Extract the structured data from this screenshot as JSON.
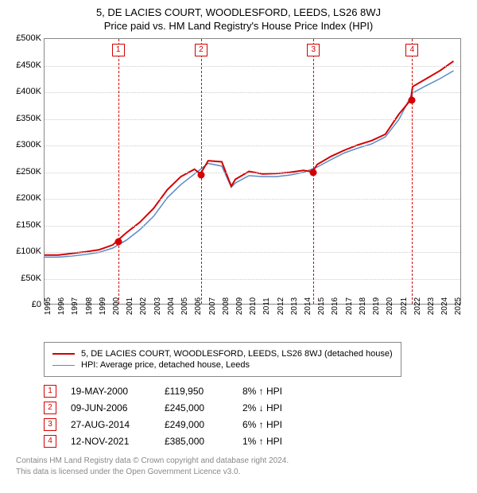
{
  "title": "5, DE LACIES COURT, WOODLESFORD, LEEDS, LS26 8WJ",
  "subtitle": "Price paid vs. HM Land Registry's House Price Index (HPI)",
  "chart": {
    "type": "line",
    "background_color": "#ffffff",
    "grid_color": "#cccccc",
    "border_color": "#888888",
    "y_axis": {
      "min": 0,
      "max": 500000,
      "step": 50000,
      "labels": [
        "£0",
        "£50K",
        "£100K",
        "£150K",
        "£200K",
        "£250K",
        "£300K",
        "£350K",
        "£400K",
        "£450K",
        "£500K"
      ],
      "fontsize": 11
    },
    "x_axis": {
      "min": 1995,
      "max": 2025.5,
      "ticks": [
        1995,
        1996,
        1997,
        1998,
        1999,
        2000,
        2001,
        2002,
        2003,
        2004,
        2005,
        2006,
        2007,
        2008,
        2009,
        2010,
        2011,
        2012,
        2013,
        2014,
        2015,
        2016,
        2017,
        2018,
        2019,
        2020,
        2021,
        2022,
        2023,
        2024,
        2025
      ],
      "fontsize": 10
    },
    "series": [
      {
        "name": "property",
        "label": "5, DE LACIES COURT, WOODLESFORD, LEEDS, LS26 8WJ (detached house)",
        "color": "#d40000",
        "line_width": 2,
        "points": [
          [
            1995,
            92000
          ],
          [
            1996,
            92000
          ],
          [
            1997,
            95000
          ],
          [
            1998,
            98000
          ],
          [
            1999,
            102000
          ],
          [
            2000,
            111000
          ],
          [
            2000.38,
            119950
          ],
          [
            2001,
            134000
          ],
          [
            2002,
            154000
          ],
          [
            2003,
            180000
          ],
          [
            2004,
            215000
          ],
          [
            2005,
            240000
          ],
          [
            2006,
            254000
          ],
          [
            2006.44,
            245000
          ],
          [
            2007,
            270000
          ],
          [
            2008,
            268000
          ],
          [
            2008.7,
            222000
          ],
          [
            2009,
            235000
          ],
          [
            2010,
            250000
          ],
          [
            2011,
            245000
          ],
          [
            2012,
            246000
          ],
          [
            2013,
            248000
          ],
          [
            2014,
            252000
          ],
          [
            2014.65,
            249000
          ],
          [
            2015,
            263000
          ],
          [
            2016,
            278000
          ],
          [
            2017,
            290000
          ],
          [
            2018,
            300000
          ],
          [
            2019,
            308000
          ],
          [
            2020,
            320000
          ],
          [
            2021,
            358000
          ],
          [
            2021.86,
            385000
          ],
          [
            2022,
            410000
          ],
          [
            2023,
            425000
          ],
          [
            2024,
            440000
          ],
          [
            2025,
            458000
          ]
        ]
      },
      {
        "name": "hpi",
        "label": "HPI: Average price, detached house, Leeds",
        "color": "#5b8bc7",
        "line_width": 1.5,
        "points": [
          [
            1995,
            88000
          ],
          [
            1996,
            88000
          ],
          [
            1997,
            90000
          ],
          [
            1998,
            93000
          ],
          [
            1999,
            97000
          ],
          [
            2000,
            105000
          ],
          [
            2001,
            120000
          ],
          [
            2002,
            140000
          ],
          [
            2003,
            165000
          ],
          [
            2004,
            200000
          ],
          [
            2005,
            225000
          ],
          [
            2006,
            245000
          ],
          [
            2007,
            265000
          ],
          [
            2008,
            260000
          ],
          [
            2008.7,
            220000
          ],
          [
            2009,
            228000
          ],
          [
            2010,
            242000
          ],
          [
            2011,
            240000
          ],
          [
            2012,
            240000
          ],
          [
            2013,
            243000
          ],
          [
            2014,
            248000
          ],
          [
            2015,
            258000
          ],
          [
            2016,
            272000
          ],
          [
            2017,
            285000
          ],
          [
            2018,
            294000
          ],
          [
            2019,
            302000
          ],
          [
            2020,
            315000
          ],
          [
            2021,
            348000
          ],
          [
            2022,
            398000
          ],
          [
            2023,
            412000
          ],
          [
            2024,
            425000
          ],
          [
            2025,
            440000
          ]
        ]
      }
    ],
    "markers": [
      {
        "n": "1",
        "x": 2000.38,
        "y": 119950,
        "color": "#d40000"
      },
      {
        "n": "2",
        "x": 2006.44,
        "y": 245000,
        "color": "#d40000"
      },
      {
        "n": "3",
        "x": 2014.65,
        "y": 249000,
        "color": "#d40000"
      },
      {
        "n": "4",
        "x": 2021.86,
        "y": 385000,
        "color": "#d40000"
      }
    ]
  },
  "legend_border": "#888888",
  "transactions": [
    {
      "n": "1",
      "date": "19-MAY-2000",
      "price": "£119,950",
      "diff": "8% ↑ HPI",
      "color": "#d40000"
    },
    {
      "n": "2",
      "date": "09-JUN-2006",
      "price": "£245,000",
      "diff": "2% ↓ HPI",
      "color": "#d40000"
    },
    {
      "n": "3",
      "date": "27-AUG-2014",
      "price": "£249,000",
      "diff": "6% ↑ HPI",
      "color": "#d40000"
    },
    {
      "n": "4",
      "date": "12-NOV-2021",
      "price": "£385,000",
      "diff": "1% ↑ HPI",
      "color": "#d40000"
    }
  ],
  "footer": {
    "line1": "Contains HM Land Registry data © Crown copyright and database right 2024.",
    "line2": "This data is licensed under the Open Government Licence v3.0.",
    "color": "#888888"
  }
}
